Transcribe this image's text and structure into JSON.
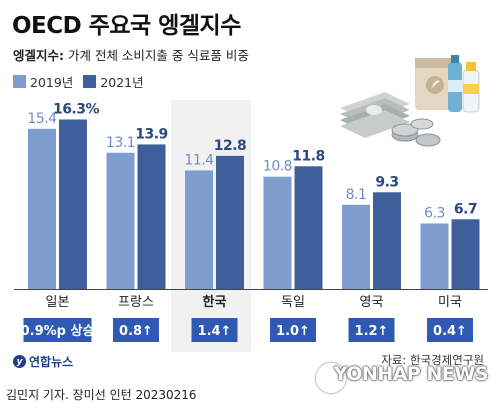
{
  "title": "OECD 주요국 엥겔지수",
  "subtitle_key": "엥겔지수:",
  "subtitle_text": "가계 전체 소비지출 중 식료품 비중",
  "colors": {
    "series_2019": "#7f9ecf",
    "series_2021": "#3f5f9a",
    "highlight_bg": "#f1f1f1",
    "change_bg": "#2f59b2"
  },
  "chart_data": {
    "type": "bar",
    "categories": [
      "일본",
      "프랑스",
      "한국",
      "독일",
      "영국",
      "미국"
    ],
    "series": [
      {
        "name": "2019년",
        "values": [
          15.4,
          13.1,
          11.4,
          10.8,
          8.1,
          6.3
        ],
        "labels": [
          "15.4",
          "13.1",
          "11.4",
          "10.8",
          "8.1",
          "6.3"
        ]
      },
      {
        "name": "2021년",
        "values": [
          16.3,
          13.9,
          12.8,
          11.8,
          9.3,
          6.7
        ],
        "labels": [
          "16.3%",
          "13.9",
          "12.8",
          "11.8",
          "9.3",
          "6.7"
        ]
      }
    ],
    "changes": [
      "0.9%p 상승",
      "0.8↑",
      "1.4↑",
      "1.0↑",
      "1.2↑",
      "0.4↑"
    ],
    "highlighted_category": "한국",
    "ylim": [
      0,
      18
    ],
    "legend_position": "top-left"
  },
  "credit_logo": "연합뉴스",
  "source": "자료: 한국경제연구원",
  "byline": "김민지 기자. 장미선 인턴  20230216",
  "watermark": "YONHAP NEWS"
}
